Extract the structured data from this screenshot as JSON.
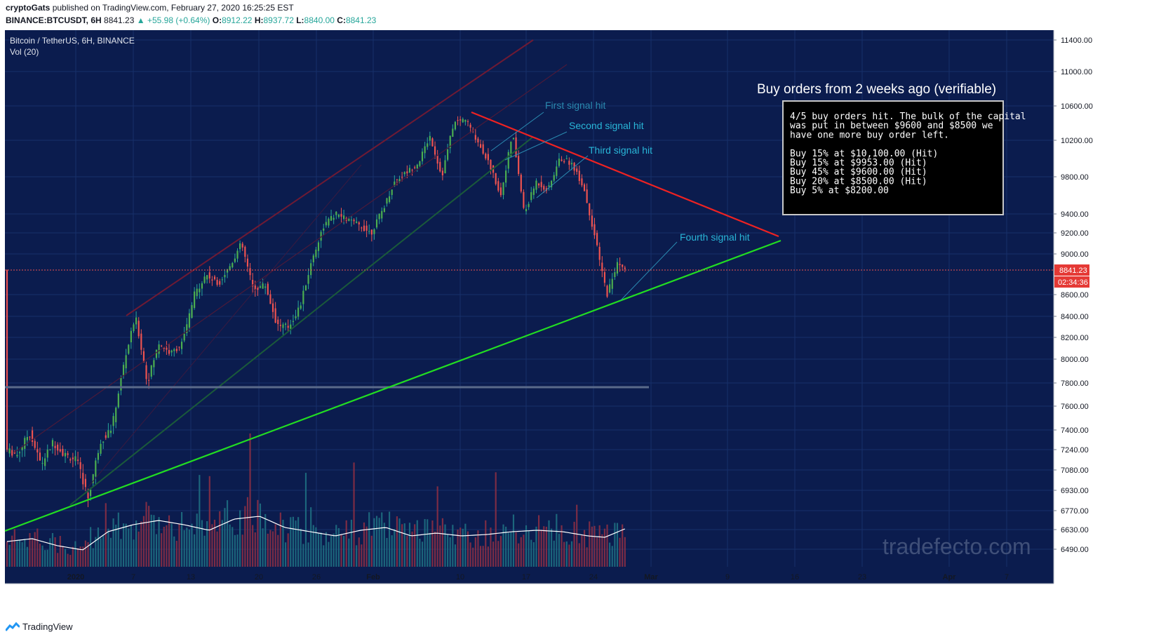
{
  "header": {
    "author": "cryptoGats",
    "published": "published on TradingView.com, February 27, 2020 16:25:25 EST",
    "symbol": "BINANCE:BTCUSDT, 6H",
    "last": "8841.23",
    "change": "+55.98 (+0.64%)",
    "o_label": "O:",
    "o": "8912.22",
    "h_label": "H:",
    "h": "8937.72",
    "l_label": "L:",
    "l": "8840.00",
    "c_label": "C:",
    "c": "8841.23"
  },
  "chart_data": {
    "type": "candlestick",
    "title": "Bitcoin / TetherUS, 6H, BINANCE",
    "indicator": "Vol (20)",
    "y_ticks": [
      "11400.00",
      "11000.00",
      "10600.00",
      "10200.00",
      "9800.00",
      "9400.00",
      "9200.00",
      "9000.00",
      "8600.00",
      "8400.00",
      "8200.00",
      "8000.00",
      "7800.00",
      "7600.00",
      "7400.00",
      "7240.00",
      "7080.00",
      "6930.00",
      "6770.00",
      "6630.00",
      "6490.00"
    ],
    "x_ticks": [
      "2020",
      "7",
      "13",
      "20",
      "26",
      "Feb",
      "10",
      "17",
      "24",
      "Mar",
      "9",
      "16",
      "23",
      "Apr",
      "7"
    ],
    "last_price_label": "8841.23",
    "countdown_label": "02:34:36",
    "colors": {
      "background": "#0b1c4e",
      "up": "#26a69a",
      "down": "#ef5350",
      "support": "#22dd22",
      "resistance": "#ee2222",
      "annotation": "#29b6d8"
    },
    "annotations": [
      "First signal hit",
      "Second signal hit",
      "Third signal hit",
      "Fourth signal hit"
    ],
    "panel_title": "Buy orders from 2 weeks ago (verifiable)",
    "panel_lines": [
      "4/5 buy orders hit. The bulk of the capital",
      "was put in between $9600 and $8500 we",
      "have one more buy order left.",
      "",
      "Buy 15% at $10,100.00 (Hit)",
      "Buy 15% at $9953.00 (Hit)",
      "Buy 45% at $9600.00 (Hit)",
      "Buy 20% at $8500.00 (Hit)",
      "Buy   5% at $8200.00"
    ],
    "watermark": "tradefecto.com",
    "price_path": [
      [
        0,
        7240
      ],
      [
        14,
        7200
      ],
      [
        28,
        7380
      ],
      [
        42,
        7120
      ],
      [
        56,
        7300
      ],
      [
        70,
        7200
      ],
      [
        84,
        7160
      ],
      [
        98,
        6870
      ],
      [
        112,
        7300
      ],
      [
        126,
        7420
      ],
      [
        140,
        7950
      ],
      [
        154,
        8400
      ],
      [
        168,
        7800
      ],
      [
        182,
        8150
      ],
      [
        196,
        8050
      ],
      [
        210,
        8150
      ],
      [
        224,
        8600
      ],
      [
        238,
        8800
      ],
      [
        252,
        8700
      ],
      [
        266,
        8880
      ],
      [
        280,
        9100
      ],
      [
        294,
        8650
      ],
      [
        308,
        8700
      ],
      [
        322,
        8320
      ],
      [
        336,
        8300
      ],
      [
        350,
        8500
      ],
      [
        364,
        8950
      ],
      [
        378,
        9280
      ],
      [
        392,
        9400
      ],
      [
        406,
        9340
      ],
      [
        420,
        9280
      ],
      [
        434,
        9200
      ],
      [
        448,
        9450
      ],
      [
        462,
        9750
      ],
      [
        476,
        9850
      ],
      [
        490,
        9950
      ],
      [
        504,
        10250
      ],
      [
        518,
        9800
      ],
      [
        532,
        10400
      ],
      [
        546,
        10450
      ],
      [
        560,
        10200
      ],
      [
        574,
        9950
      ],
      [
        588,
        9600
      ],
      [
        602,
        10280
      ],
      [
        616,
        9400
      ],
      [
        630,
        9750
      ],
      [
        644,
        9650
      ],
      [
        658,
        10000
      ],
      [
        672,
        9950
      ],
      [
        686,
        9700
      ],
      [
        700,
        9150
      ],
      [
        714,
        8600
      ],
      [
        728,
        8940
      ],
      [
        734,
        8841
      ]
    ],
    "volume_path": [
      [
        0,
        0.18
      ],
      [
        30,
        0.2
      ],
      [
        60,
        0.15
      ],
      [
        90,
        0.12
      ],
      [
        120,
        0.25
      ],
      [
        150,
        0.3
      ],
      [
        180,
        0.33
      ],
      [
        210,
        0.3
      ],
      [
        240,
        0.26
      ],
      [
        270,
        0.34
      ],
      [
        300,
        0.36
      ],
      [
        330,
        0.28
      ],
      [
        360,
        0.25
      ],
      [
        390,
        0.22
      ],
      [
        420,
        0.26
      ],
      [
        450,
        0.28
      ],
      [
        480,
        0.22
      ],
      [
        510,
        0.24
      ],
      [
        540,
        0.22
      ],
      [
        570,
        0.23
      ],
      [
        600,
        0.25
      ],
      [
        630,
        0.26
      ],
      [
        660,
        0.25
      ],
      [
        690,
        0.22
      ],
      [
        710,
        0.21
      ],
      [
        734,
        0.27
      ]
    ]
  },
  "footer": {
    "brand": "TradingView"
  }
}
